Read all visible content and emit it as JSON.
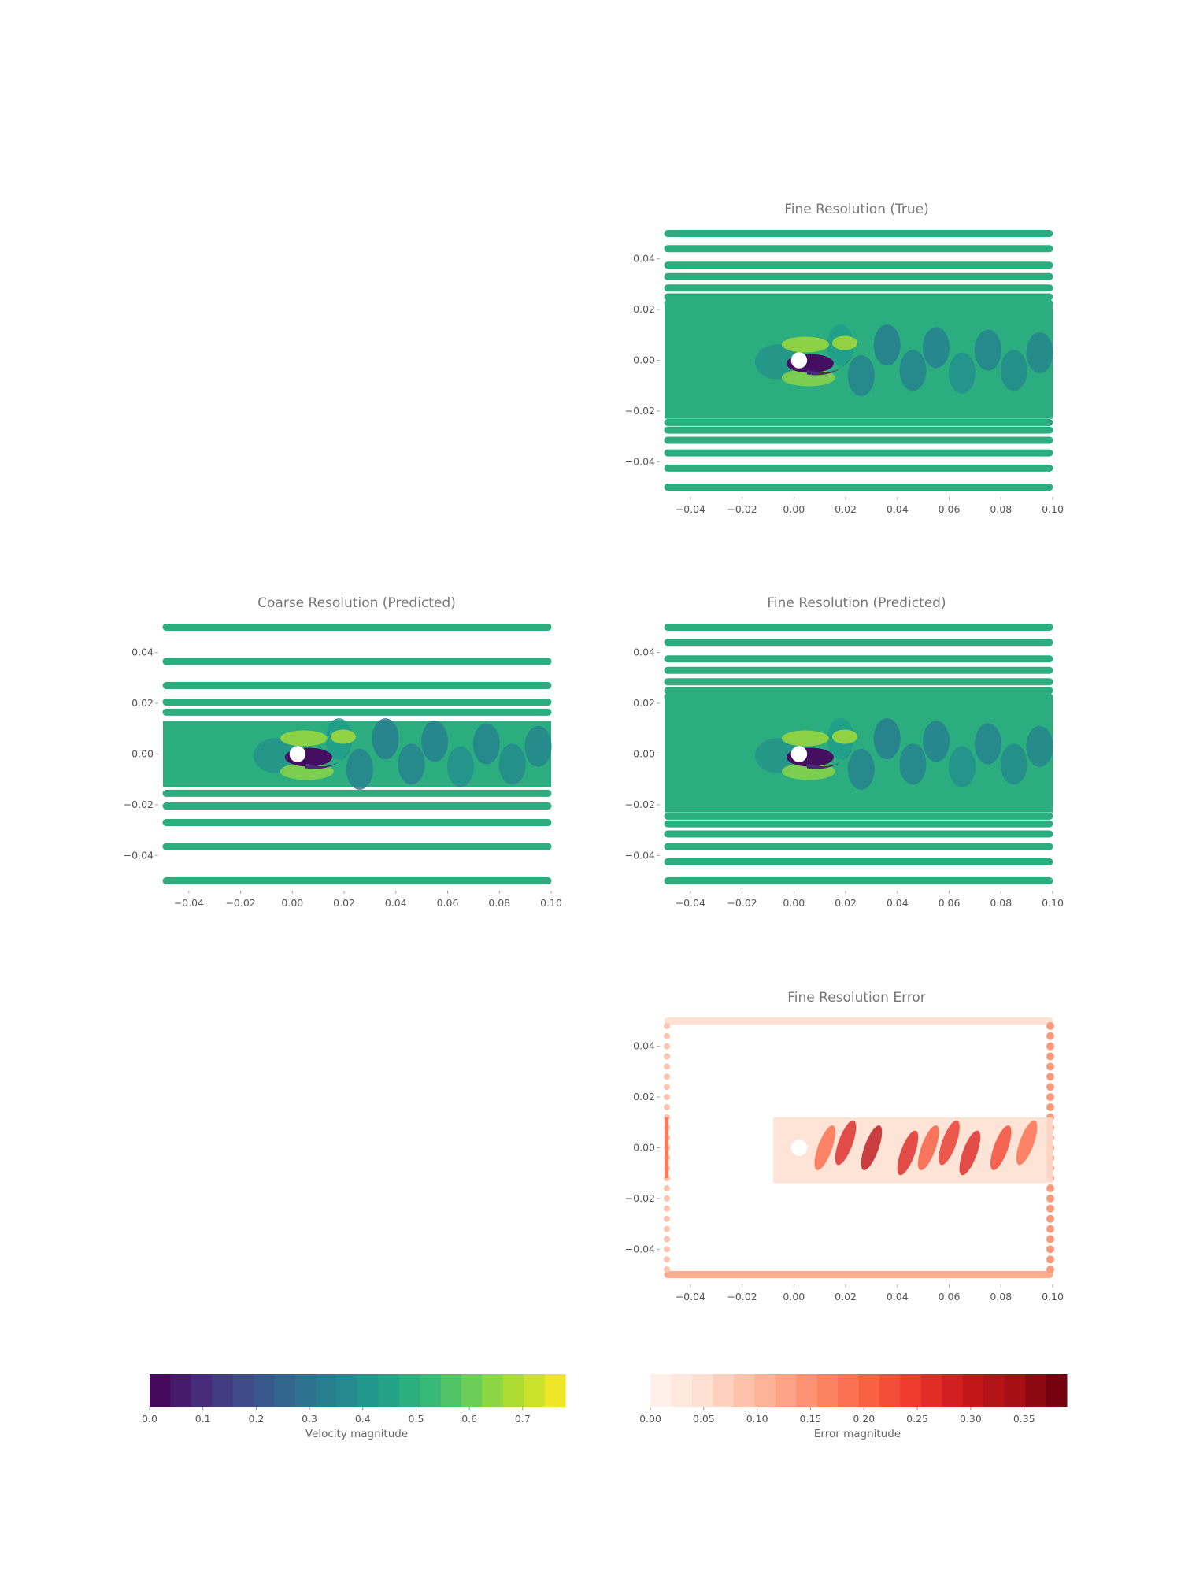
{
  "chart_data": [
    {
      "id": "fine-true",
      "type": "heatmap",
      "title": "Fine Resolution (True)",
      "xlabel": "",
      "ylabel": "",
      "xlim": [
        -0.05,
        0.1
      ],
      "ylim": [
        -0.052,
        0.052
      ],
      "xticks": [
        "−0.04",
        "−0.02",
        "0.00",
        "0.02",
        "0.04",
        "0.06",
        "0.08",
        "0.10"
      ],
      "xtick_values": [
        -0.04,
        -0.02,
        0.0,
        0.02,
        0.04,
        0.06,
        0.08,
        0.1
      ],
      "yticks": [
        "0.04",
        "0.02",
        "0.00",
        "−0.02",
        "−0.04"
      ],
      "ytick_values": [
        0.04,
        0.02,
        0.0,
        -0.02,
        -0.04
      ],
      "colormap": "viridis",
      "color_quantity": "Velocity magnitude",
      "cylinder": {
        "x": 0.002,
        "y": 0.0,
        "r": 0.0025
      },
      "dense_band": [
        -0.023,
        0.023
      ],
      "strip_y": [
        0.05,
        0.044,
        0.0375,
        0.033,
        0.0285,
        0.025,
        0.0225,
        -0.0245,
        -0.0275,
        -0.0315,
        -0.0365,
        -0.0425,
        -0.05
      ],
      "grid": false
    },
    {
      "id": "coarse-pred",
      "type": "heatmap",
      "title": "Coarse Resolution (Predicted)",
      "xlabel": "",
      "ylabel": "",
      "xlim": [
        -0.05,
        0.1
      ],
      "ylim": [
        -0.052,
        0.052
      ],
      "xticks": [
        "−0.04",
        "−0.02",
        "0.00",
        "0.02",
        "0.04",
        "0.06",
        "0.08",
        "0.10"
      ],
      "xtick_values": [
        -0.04,
        -0.02,
        0.0,
        0.02,
        0.04,
        0.06,
        0.08,
        0.1
      ],
      "yticks": [
        "0.04",
        "0.02",
        "0.00",
        "−0.02",
        "−0.04"
      ],
      "ytick_values": [
        0.04,
        0.02,
        0.0,
        -0.02,
        -0.04
      ],
      "colormap": "viridis",
      "color_quantity": "Velocity magnitude",
      "cylinder": {
        "x": 0.002,
        "y": 0.0,
        "r": 0.0025
      },
      "dense_band": [
        -0.013,
        0.013
      ],
      "strip_y": [
        0.05,
        0.0365,
        0.027,
        0.0205,
        0.0165,
        -0.0155,
        -0.0205,
        -0.027,
        -0.0365,
        -0.05
      ],
      "grid": false
    },
    {
      "id": "fine-pred",
      "type": "heatmap",
      "title": "Fine Resolution (Predicted)",
      "xlabel": "",
      "ylabel": "",
      "xlim": [
        -0.05,
        0.1
      ],
      "ylim": [
        -0.052,
        0.052
      ],
      "xticks": [
        "−0.04",
        "−0.02",
        "0.00",
        "0.02",
        "0.04",
        "0.06",
        "0.08",
        "0.10"
      ],
      "xtick_values": [
        -0.04,
        -0.02,
        0.0,
        0.02,
        0.04,
        0.06,
        0.08,
        0.1
      ],
      "yticks": [
        "0.04",
        "0.02",
        "0.00",
        "−0.02",
        "−0.04"
      ],
      "ytick_values": [
        0.04,
        0.02,
        0.0,
        -0.02,
        -0.04
      ],
      "colormap": "viridis",
      "color_quantity": "Velocity magnitude",
      "cylinder": {
        "x": 0.002,
        "y": 0.0,
        "r": 0.0025
      },
      "dense_band": [
        -0.023,
        0.023
      ],
      "strip_y": [
        0.05,
        0.044,
        0.0375,
        0.033,
        0.0285,
        0.025,
        0.0225,
        -0.0245,
        -0.0275,
        -0.0315,
        -0.0365,
        -0.0425,
        -0.05
      ],
      "grid": false
    },
    {
      "id": "fine-error",
      "type": "heatmap",
      "title": "Fine Resolution Error",
      "xlabel": "",
      "ylabel": "",
      "xlim": [
        -0.05,
        0.1
      ],
      "ylim": [
        -0.052,
        0.052
      ],
      "xticks": [
        "−0.04",
        "−0.02",
        "0.00",
        "0.02",
        "0.04",
        "0.06",
        "0.08",
        "0.10"
      ],
      "xtick_values": [
        -0.04,
        -0.02,
        0.0,
        0.02,
        0.04,
        0.06,
        0.08,
        0.1
      ],
      "yticks": [
        "0.04",
        "0.02",
        "0.00",
        "−0.02",
        "−0.04"
      ],
      "ytick_values": [
        0.04,
        0.02,
        0.0,
        -0.02,
        -0.04
      ],
      "colormap": "reds",
      "color_quantity": "Error magnitude",
      "cylinder": {
        "x": 0.002,
        "y": 0.0,
        "r": 0.0025
      },
      "wake_region": {
        "x": [
          -0.008,
          0.1
        ],
        "y": [
          -0.014,
          0.012
        ]
      },
      "grid": false
    }
  ],
  "colorbars": [
    {
      "id": "velocity",
      "label": "Velocity magnitude",
      "colormap": "viridis",
      "range": [
        0.0,
        0.78
      ],
      "levels": 20,
      "ticks": [
        "0.0",
        "0.1",
        "0.2",
        "0.3",
        "0.4",
        "0.5",
        "0.6",
        "0.7"
      ],
      "tick_values": [
        0.0,
        0.1,
        0.2,
        0.3,
        0.4,
        0.5,
        0.6,
        0.7
      ]
    },
    {
      "id": "error",
      "label": "Error magnitude",
      "colormap": "reds",
      "range": [
        0.0,
        0.39
      ],
      "levels": 20,
      "ticks": [
        "0.00",
        "0.05",
        "0.10",
        "0.15",
        "0.20",
        "0.25",
        "0.30",
        "0.35"
      ],
      "tick_values": [
        0.0,
        0.05,
        0.1,
        0.15,
        0.2,
        0.25,
        0.3,
        0.35
      ]
    }
  ]
}
